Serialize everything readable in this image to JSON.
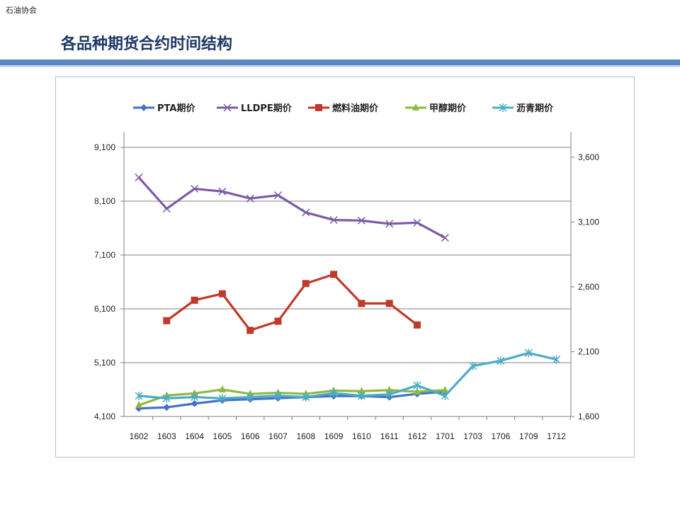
{
  "header": {
    "org": "石油协会",
    "title": "各品种期货合约时间结构"
  },
  "colors": {
    "rule": "#5b86c0",
    "pta": "#4472c4",
    "lldpe": "#7d5ba6",
    "fuel": "#c0392b",
    "methanol": "#8fb93e",
    "asphalt": "#4bacc6"
  },
  "chart_data": {
    "type": "line",
    "title": "",
    "categories": [
      "1602",
      "1603",
      "1604",
      "1605",
      "1606",
      "1607",
      "1608",
      "1609",
      "1610",
      "1611",
      "1612",
      "1701",
      "1703",
      "1706",
      "1709",
      "1712"
    ],
    "left_axis": {
      "min": 4100,
      "max": 9100,
      "ticks": [
        "9,100",
        "8,100",
        "7,100",
        "6,100",
        "5,100",
        "4,100"
      ]
    },
    "right_axis": {
      "min": 1600,
      "max": 3600,
      "ticks": [
        "3,600",
        "3,100",
        "2,600",
        "2,100",
        "1,600"
      ]
    },
    "grid": true,
    "legend_position": "top",
    "series": [
      {
        "name": "PTA期价",
        "axis": "left",
        "color": "#4472c4",
        "marker": "diamond",
        "values": [
          4250,
          4270,
          4340,
          4400,
          4420,
          4440,
          4460,
          4480,
          4480,
          4460,
          4520,
          4560,
          null,
          null,
          null,
          null
        ]
      },
      {
        "name": "LLDPE期价",
        "axis": "left",
        "color": "#7d5ba6",
        "marker": "x",
        "values": [
          8540,
          7960,
          8330,
          8280,
          8150,
          8210,
          7890,
          7750,
          7740,
          7680,
          7700,
          7420,
          null,
          null,
          null,
          null
        ]
      },
      {
        "name": "燃料油期价",
        "axis": "left",
        "color": "#c0392b",
        "marker": "square",
        "values": [
          null,
          5880,
          6260,
          6380,
          5700,
          5870,
          6570,
          6740,
          6200,
          6200,
          5800,
          null,
          null,
          null,
          null,
          null
        ]
      },
      {
        "name": "甲醇期价",
        "axis": "left",
        "color": "#8fb93e",
        "marker": "triangle",
        "values": [
          4310,
          4490,
          4530,
          4600,
          4520,
          4540,
          4520,
          4580,
          4570,
          4590,
          4560,
          4590,
          null,
          null,
          null,
          null
        ]
      },
      {
        "name": "沥青期价",
        "axis": "right",
        "color": "#4bacc6",
        "marker": "asterisk",
        "values": [
          1760,
          1740,
          1750,
          1740,
          1750,
          1760,
          1750,
          1780,
          1760,
          1770,
          1840,
          1760,
          1990,
          2030,
          2090,
          2040
        ]
      }
    ]
  }
}
